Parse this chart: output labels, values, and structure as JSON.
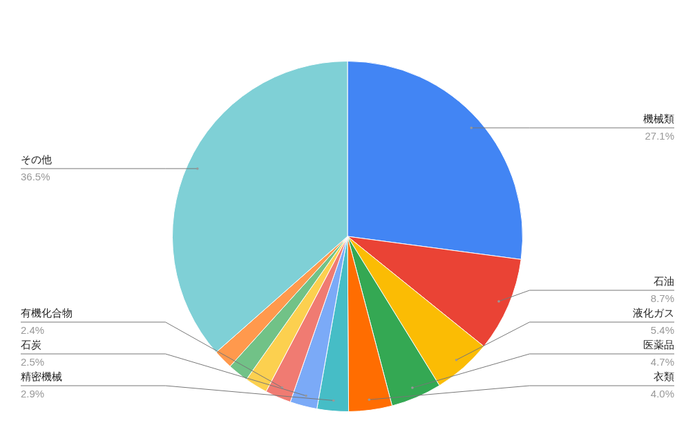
{
  "chart_data": {
    "type": "pie",
    "categories": [
      "機械類",
      "石油",
      "液化ガス",
      "医薬品",
      "衣類",
      "精密機械",
      "石炭",
      "有機化合物",
      null,
      null,
      null,
      "その他"
    ],
    "values": [
      27.1,
      8.7,
      5.4,
      4.7,
      4.0,
      2.9,
      2.5,
      2.4,
      2.1,
      1.9,
      1.8,
      36.5
    ],
    "colors": [
      "#4285f4",
      "#ea4335",
      "#fbbc04",
      "#34a853",
      "#ff6d01",
      "#46bdc6",
      "#7baaf7",
      "#f07b72",
      "#fcd04f",
      "#71c287",
      "#ff994d",
      "#7fd0d6"
    ],
    "value_labels": [
      "27.1%",
      "8.7%",
      "5.4%",
      "4.7%",
      "4.0%",
      "2.9%",
      "2.5%",
      "2.4%",
      null,
      null,
      null,
      "36.5%"
    ],
    "legend": false
  }
}
